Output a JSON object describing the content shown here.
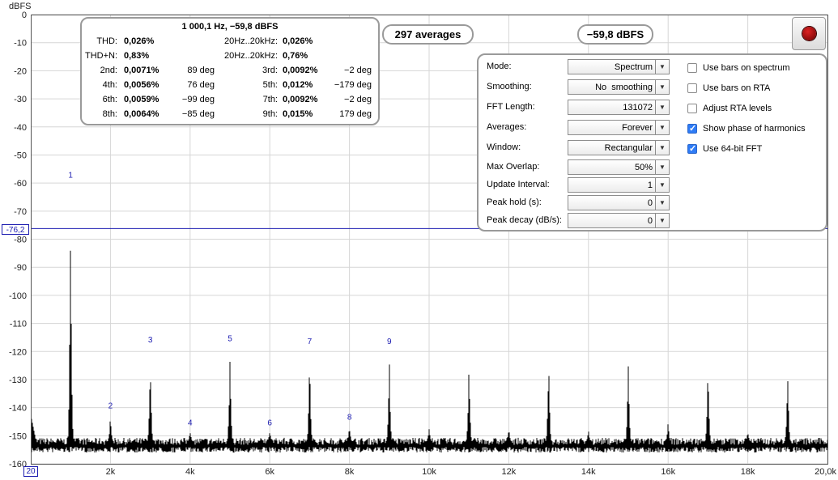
{
  "y_axis_unit": "dBFS",
  "cursor_readout": "-76,2",
  "x_axis_start": "20",
  "chart_data": {
    "type": "line",
    "x_unit": "Hz",
    "y_unit": "dBFS",
    "ylim": [
      -160,
      0
    ],
    "xlim": [
      20,
      20000
    ],
    "y_ticks": [
      "0",
      "-10",
      "-20",
      "-30",
      "-40",
      "-50",
      "-60",
      "-70",
      "-80",
      "-90",
      "-100",
      "-110",
      "-120",
      "-130",
      "-140",
      "-150",
      "-160"
    ],
    "x_ticks": [
      "2k",
      "4k",
      "6k",
      "8k",
      "10k",
      "12k",
      "14k",
      "16k",
      "18k",
      "20,0k"
    ],
    "cursor_level": -76.2,
    "noise_floor": -152,
    "peaks": [
      {
        "x": 1000,
        "y": -59.8,
        "label": "1"
      },
      {
        "x": 2000,
        "y": -142,
        "label": "2"
      },
      {
        "x": 3000,
        "y": -118.5,
        "label": "3"
      },
      {
        "x": 4000,
        "y": -148,
        "label": "4"
      },
      {
        "x": 5000,
        "y": -118,
        "label": "5"
      },
      {
        "x": 6000,
        "y": -148,
        "label": "6"
      },
      {
        "x": 7000,
        "y": -119,
        "label": "7"
      },
      {
        "x": 8000,
        "y": -146,
        "label": "8"
      },
      {
        "x": 9000,
        "y": -119,
        "label": "9"
      },
      {
        "x": 10000,
        "y": -147,
        "label": ""
      },
      {
        "x": 11000,
        "y": -120,
        "label": ""
      },
      {
        "x": 12000,
        "y": -147,
        "label": ""
      },
      {
        "x": 13000,
        "y": -120,
        "label": ""
      },
      {
        "x": 14000,
        "y": -148,
        "label": ""
      },
      {
        "x": 15000,
        "y": -121,
        "label": ""
      },
      {
        "x": 16000,
        "y": -145,
        "label": ""
      },
      {
        "x": 17000,
        "y": -120,
        "label": ""
      },
      {
        "x": 18000,
        "y": -148,
        "label": ""
      },
      {
        "x": 19000,
        "y": -122,
        "label": ""
      }
    ]
  },
  "stats": {
    "header": "1 000,1 Hz, −59,8 dBFS",
    "thd_label": "THD:",
    "thd_value": "0,026%",
    "thd_band_label": "20Hz..20kHz:",
    "thd_band_value": "0,026%",
    "thdn_label": "THD+N:",
    "thdn_value": "0,83%",
    "thdn_band_label": "20Hz..20kHz:",
    "thdn_band_value": "0,76%",
    "harmonics": [
      {
        "name": "2nd:",
        "value": "0,0071%",
        "phase": "89 deg"
      },
      {
        "name": "3rd:",
        "value": "0,0092%",
        "phase": "−2 deg"
      },
      {
        "name": "4th:",
        "value": "0,0056%",
        "phase": "76 deg"
      },
      {
        "name": "5th:",
        "value": "0,012%",
        "phase": "−179 deg"
      },
      {
        "name": "6th:",
        "value": "0,0059%",
        "phase": "−99 deg"
      },
      {
        "name": "7th:",
        "value": "0,0092%",
        "phase": "−2 deg"
      },
      {
        "name": "8th:",
        "value": "0,0064%",
        "phase": "−85 deg"
      },
      {
        "name": "9th:",
        "value": "0,015%",
        "phase": "179 deg"
      }
    ]
  },
  "averages_badge": "297 averages",
  "level_badge": "−59,8 dBFS",
  "settings": [
    {
      "label": "Mode:",
      "value": "Spectrum"
    },
    {
      "label": "Smoothing:",
      "value": "No  smoothing"
    },
    {
      "label": "FFT Length:",
      "value": "131072"
    },
    {
      "label": "Averages:",
      "value": "Forever"
    },
    {
      "label": "Window:",
      "value": "Rectangular"
    },
    {
      "label": "Max Overlap:",
      "value": "50%"
    },
    {
      "label": "Update Interval:",
      "value": "1"
    },
    {
      "label": "Peak hold (s):",
      "value": "0"
    },
    {
      "label": "Peak decay (dB/s):",
      "value": "0"
    }
  ],
  "options": [
    {
      "label": "Use bars on spectrum",
      "checked": false
    },
    {
      "label": "Use bars on RTA",
      "checked": false
    },
    {
      "label": "Adjust RTA levels",
      "checked": false
    },
    {
      "label": "Show phase of harmonics",
      "checked": true
    },
    {
      "label": "Use 64-bit FFT",
      "checked": true
    }
  ]
}
